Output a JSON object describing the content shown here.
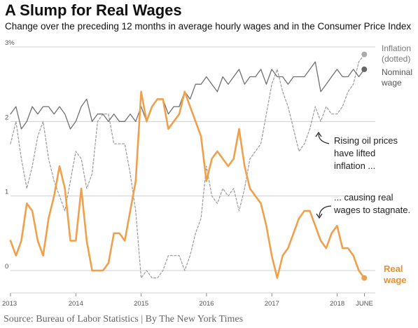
{
  "header": {
    "title": "A Slump for Real Wages",
    "subtitle": "Change over the preceding 12 months in average hourly wages and in the Consumer Price Index"
  },
  "source": "Source: Bureau of Labor Statistics | By The New York Times",
  "colors": {
    "inflation": "#9a9a9a",
    "nominal": "#6f6f6f",
    "real": "#f0a04b",
    "grid": "#cfcfcf"
  },
  "chart_data": {
    "type": "line",
    "title": "A Slump for Real Wages",
    "xlabel": "",
    "ylabel": "",
    "ylim": [
      -0.3,
      3.0
    ],
    "xlim": [
      2013.0,
      2018.583
    ],
    "grid": true,
    "x_ticks": [
      {
        "value": 2013.0,
        "label": "2013"
      },
      {
        "value": 2014.0,
        "label": "2014"
      },
      {
        "value": 2015.0,
        "label": "2015"
      },
      {
        "value": 2016.0,
        "label": "2016"
      },
      {
        "value": 2017.0,
        "label": "2017"
      },
      {
        "value": 2018.0,
        "label": "2018"
      },
      {
        "value": 2018.4167,
        "label": "JUNE"
      }
    ],
    "y_ticks": [
      {
        "value": 0,
        "label": "0"
      },
      {
        "value": 1,
        "label": "1"
      },
      {
        "value": 2,
        "label": "2"
      },
      {
        "value": 3,
        "label": "3%"
      }
    ],
    "legend_labels": {
      "inflation": [
        "Inflation",
        "(dotted)"
      ],
      "nominal": [
        "Nominal",
        "wage"
      ],
      "real": [
        "Real",
        "wage"
      ]
    },
    "annotations": [
      {
        "lines": [
          "Rising oil prices",
          "have lifted",
          "inflation ..."
        ]
      },
      {
        "lines": [
          "... causing real",
          "wages to stagnate."
        ]
      }
    ],
    "x_start": 2013.0,
    "x_step": 0.0833,
    "series": [
      {
        "key": "inflation",
        "style": "dotted",
        "values": [
          1.7,
          2.0,
          1.5,
          1.1,
          1.4,
          1.8,
          2.0,
          1.5,
          1.2,
          1.0,
          0.8,
          1.2,
          1.6,
          1.5,
          1.1,
          1.3,
          2.0,
          2.1,
          2.1,
          1.7,
          1.7,
          1.7,
          1.3,
          0.8,
          -0.1,
          0.0,
          -0.1,
          -0.1,
          0.0,
          0.2,
          0.2,
          0.2,
          0.0,
          0.2,
          0.5,
          0.7,
          1.4,
          1.0,
          0.9,
          1.1,
          1.0,
          1.1,
          0.8,
          1.1,
          1.5,
          1.6,
          1.7,
          2.1,
          2.5,
          2.7,
          2.4,
          2.2,
          1.9,
          1.6,
          1.7,
          1.9,
          2.2,
          2.0,
          2.2,
          2.1,
          2.1,
          2.2,
          2.4,
          2.5,
          2.8,
          2.9
        ]
      },
      {
        "key": "nominal",
        "style": "solid",
        "values": [
          2.1,
          2.2,
          1.9,
          2.0,
          2.2,
          2.1,
          2.2,
          2.2,
          2.1,
          2.2,
          2.1,
          1.9,
          2.0,
          2.2,
          2.3,
          2.0,
          2.1,
          2.1,
          2.0,
          2.1,
          2.0,
          2.0,
          2.1,
          2.0,
          2.2,
          2.0,
          2.2,
          2.3,
          2.3,
          2.1,
          2.2,
          2.2,
          2.4,
          2.3,
          2.5,
          2.5,
          2.6,
          2.5,
          2.4,
          2.6,
          2.5,
          2.6,
          2.7,
          2.5,
          2.6,
          2.6,
          2.7,
          2.5,
          2.7,
          2.6,
          2.6,
          2.5,
          2.6,
          2.6,
          2.6,
          2.7,
          2.8,
          2.4,
          2.5,
          2.6,
          2.7,
          2.6,
          2.6,
          2.7,
          2.6,
          2.7
        ]
      },
      {
        "key": "real",
        "style": "solid",
        "values": [
          0.4,
          0.2,
          0.4,
          0.9,
          0.8,
          0.4,
          0.2,
          0.7,
          1.0,
          1.4,
          1.1,
          0.4,
          0.4,
          1.1,
          0.4,
          0.0,
          0.0,
          0.0,
          0.1,
          0.5,
          0.5,
          0.4,
          0.8,
          1.2,
          2.4,
          2.0,
          2.2,
          2.3,
          2.3,
          1.9,
          2.0,
          2.1,
          2.4,
          2.2,
          2.0,
          1.8,
          1.2,
          1.5,
          1.6,
          1.5,
          1.4,
          1.5,
          1.9,
          1.4,
          1.1,
          1.0,
          0.9,
          0.6,
          0.2,
          -0.1,
          0.2,
          0.3,
          0.5,
          0.7,
          0.8,
          0.8,
          0.6,
          0.4,
          0.3,
          0.5,
          0.6,
          0.3,
          0.3,
          0.2,
          0.0,
          -0.1
        ]
      }
    ]
  }
}
